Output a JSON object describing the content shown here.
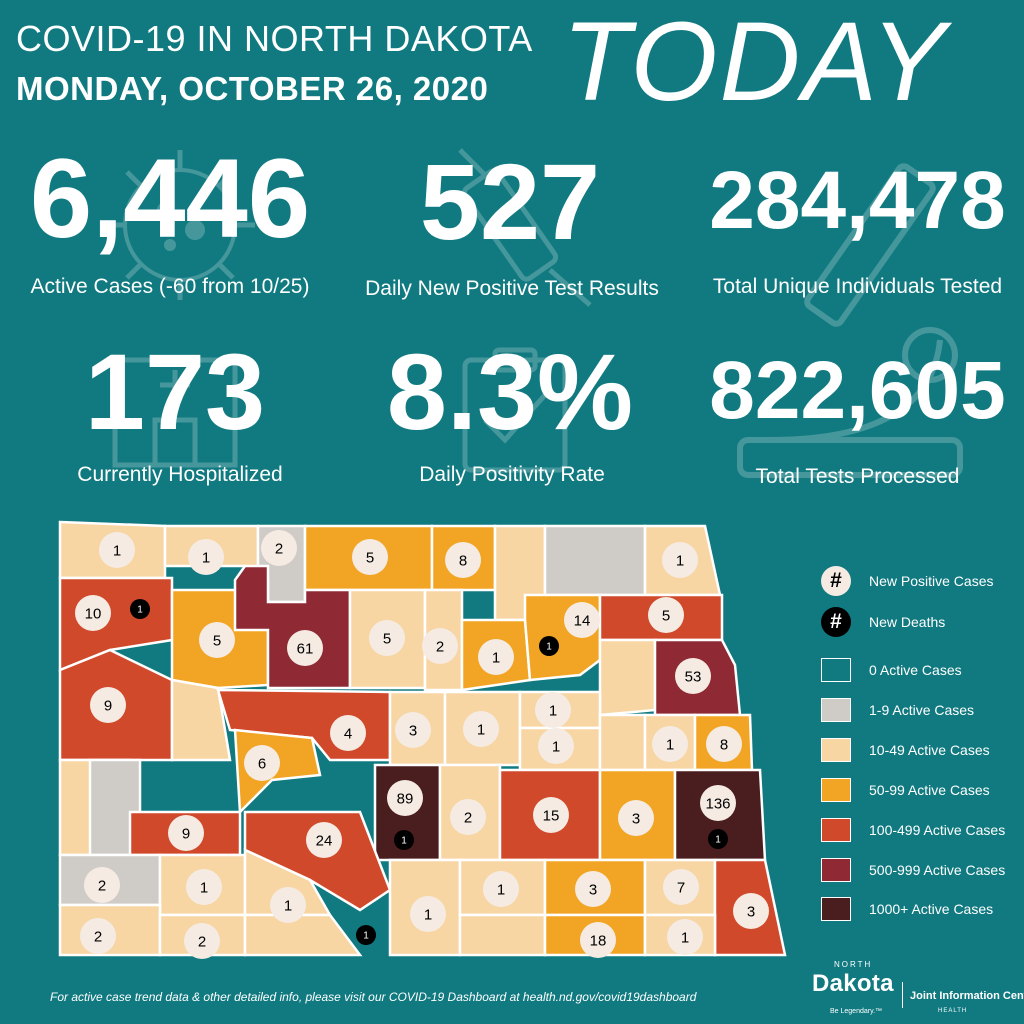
{
  "header": {
    "title": "COVID-19 IN NORTH DAKOTA",
    "date": "MONDAY, OCTOBER 26, 2020",
    "today": "TODAY"
  },
  "stats": {
    "active_cases": {
      "value": "6,446",
      "label": "Active Cases (-60 from 10/25)"
    },
    "new_positive": {
      "value": "527",
      "label": "Daily New Positive Test Results"
    },
    "unique_tested": {
      "value": "284,478",
      "label": "Total Unique Individuals Tested"
    },
    "hospitalized": {
      "value": "173",
      "label": "Currently Hospitalized"
    },
    "positivity": {
      "value": "8.3%",
      "label": "Daily Positivity Rate"
    },
    "tests_processed": {
      "value": "822,605",
      "label": "Total Tests Processed"
    }
  },
  "colors": {
    "background": "#107a80",
    "zero": "#107a80",
    "1-9": "#cfcbc6",
    "10-49": "#f7d6a4",
    "50-99": "#f2a525",
    "100-499": "#d1492b",
    "500-999": "#8f2a35",
    "1000+": "#4a1d1f",
    "county_border": "#ffffff",
    "new_case_circle": "#f5ebe3",
    "death_circle": "#000000"
  },
  "legend": {
    "new_positive": {
      "symbol": "#",
      "label": "New Positive Cases"
    },
    "new_deaths": {
      "symbol": "#",
      "label": "New Deaths"
    },
    "ranges": [
      {
        "label": "0 Active Cases",
        "color_key": "zero"
      },
      {
        "label": "1-9 Active Cases",
        "color_key": "1-9"
      },
      {
        "label": "10-49 Active Cases",
        "color_key": "10-49"
      },
      {
        "label": "50-99 Active Cases",
        "color_key": "50-99"
      },
      {
        "label": "100-499 Active Cases",
        "color_key": "100-499"
      },
      {
        "label": "500-999 Active Cases",
        "color_key": "500-999"
      },
      {
        "label": "1000+ Active Cases",
        "color_key": "1000+"
      }
    ]
  },
  "map": {
    "new_cases": [
      "1",
      "1",
      "2",
      "5",
      "8",
      "1",
      "10",
      "5",
      "61",
      "5",
      "2",
      "14",
      "5",
      "1",
      "9",
      "53",
      "3",
      "1",
      "1",
      "4",
      "1",
      "1",
      "8",
      "6",
      "89",
      "2",
      "15",
      "3",
      "136",
      "9",
      "24",
      "2",
      "1",
      "1",
      "1",
      "3",
      "7",
      "1",
      "3",
      "2",
      "2",
      "18",
      "1"
    ],
    "new_deaths": [
      "1",
      "1",
      "1",
      "1",
      "1"
    ]
  },
  "footer": {
    "text": "For active case trend data & other detailed info, please visit our COVID-19 Dashboard at health.nd.gov/covid19dashboard",
    "logo_north": "NORTH",
    "logo_dakota": "Dakota",
    "logo_tagline": "Be Legendary.™",
    "logo_org": "Joint Information Center",
    "logo_health": "HEALTH"
  }
}
